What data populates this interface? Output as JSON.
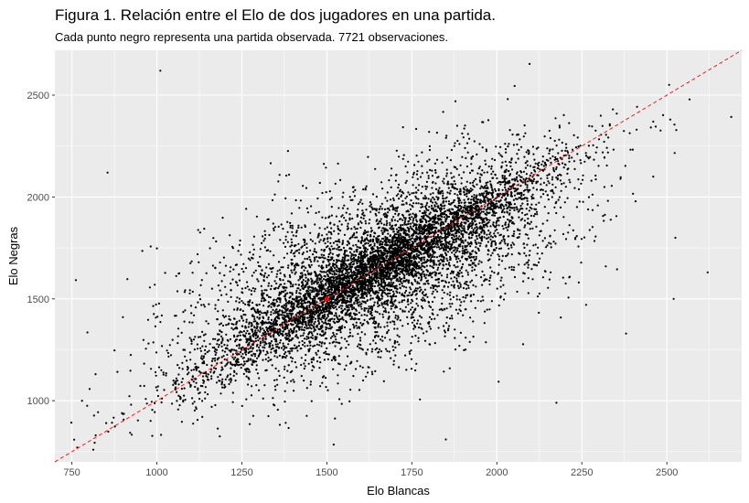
{
  "chart_data": {
    "type": "scatter",
    "title": "Figura 1. Relación entre el Elo de dos jugadores en una partida.",
    "subtitle": "Cada punto negro representa una partida observada. 7721 observaciones.",
    "xlabel": "Elo Blancas",
    "ylabel": "Elo Negras",
    "xlim": [
      700,
      2720
    ],
    "ylim": [
      700,
      2720
    ],
    "x_ticks": [
      750,
      1000,
      1250,
      1500,
      1750,
      2000,
      2250,
      2500
    ],
    "y_ticks": [
      1000,
      1500,
      2000,
      2500
    ],
    "grid": true,
    "point_color": "#000000",
    "reference_line": {
      "slope": 1,
      "intercept": 0,
      "color": "#ff0000",
      "style": "dashed"
    },
    "highlight_point": {
      "x": 1500,
      "y": 1500,
      "color": "#ff0000"
    },
    "points_shown_count": 7721,
    "distribution": {
      "center_x": 1650,
      "center_y": 1650,
      "sd": 270,
      "correlation": 0.62,
      "diagonal_cluster_weight": 0.45
    },
    "sample_points": [
      {
        "x": 1010,
        "y": 2620
      },
      {
        "x": 855,
        "y": 2120
      },
      {
        "x": 2620,
        "y": 1630
      },
      {
        "x": 2520,
        "y": 1500
      },
      {
        "x": 2525,
        "y": 1800
      },
      {
        "x": 2460,
        "y": 2100
      },
      {
        "x": 2510,
        "y": 2380
      },
      {
        "x": 2460,
        "y": 2370
      },
      {
        "x": 2380,
        "y": 1330
      },
      {
        "x": 2175,
        "y": 990
      },
      {
        "x": 780,
        "y": 1000
      },
      {
        "x": 795,
        "y": 975
      },
      {
        "x": 900,
        "y": 1410
      },
      {
        "x": 820,
        "y": 830
      },
      {
        "x": 1850,
        "y": 810
      },
      {
        "x": 1520,
        "y": 785
      }
    ]
  },
  "colors": {
    "panel_bg": "#ebebeb",
    "grid_major": "#ffffff",
    "axis_text": "#4d4d4d"
  }
}
